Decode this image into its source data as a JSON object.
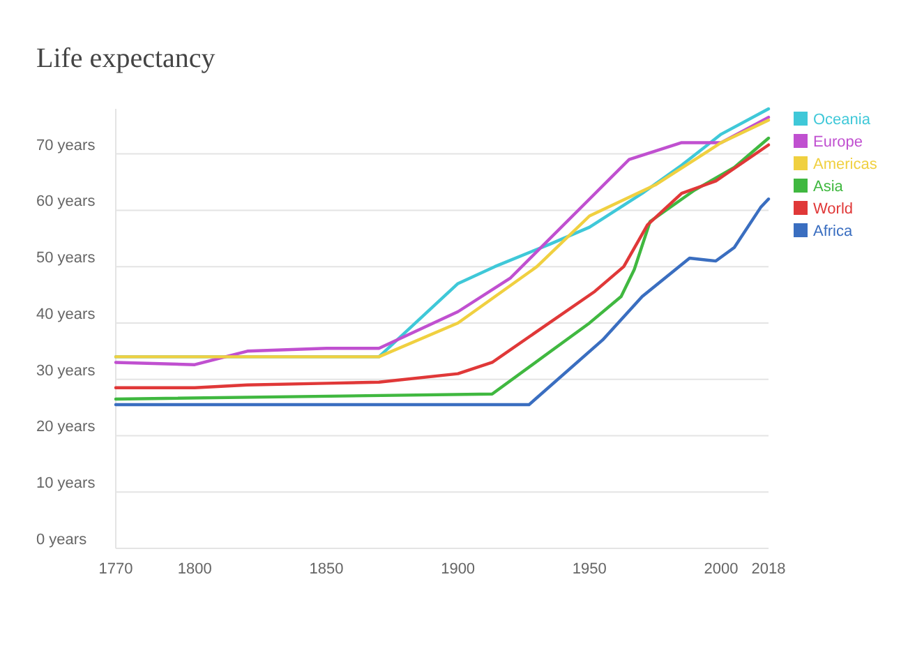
{
  "chart_data": {
    "type": "line",
    "title": "Life expectancy",
    "xlim": [
      1770,
      2018
    ],
    "xticks": [
      1770,
      1800,
      1850,
      1900,
      1950,
      2000,
      2018
    ],
    "ylim": [
      0,
      78
    ],
    "yticks": [
      {
        "value": 0,
        "label": "0 years"
      },
      {
        "value": 10,
        "label": "10 years"
      },
      {
        "value": 20,
        "label": "20 years"
      },
      {
        "value": 30,
        "label": "30 years"
      },
      {
        "value": 40,
        "label": "40 years"
      },
      {
        "value": 50,
        "label": "50 years"
      },
      {
        "value": 60,
        "label": "60 years"
      },
      {
        "value": 70,
        "label": "70 years"
      }
    ],
    "grid": "y",
    "legend": "right",
    "line_style": "solid",
    "series": [
      {
        "name": "Oceania",
        "color": "#3fc8d8",
        "x": [
          1770,
          1870,
          1900,
          1914,
          1935,
          1950,
          1970,
          1985,
          2000,
          2018
        ],
        "values": [
          34,
          34,
          47,
          50,
          54,
          57,
          63,
          68,
          73.5,
          78
        ]
      },
      {
        "name": "Europe",
        "color": "#c050d0",
        "x": [
          1770,
          1800,
          1820,
          1850,
          1870,
          1900,
          1920,
          1950,
          1965,
          1985,
          2000,
          2018
        ],
        "values": [
          33,
          32.6,
          35,
          35.5,
          35.5,
          42,
          48,
          62,
          69,
          72,
          72,
          76.5
        ]
      },
      {
        "name": "Americas",
        "color": "#f0d040",
        "x": [
          1770,
          1870,
          1900,
          1930,
          1950,
          1975,
          2000,
          2018
        ],
        "values": [
          34,
          34,
          40,
          50,
          59,
          64.5,
          72,
          76
        ]
      },
      {
        "name": "Asia",
        "color": "#40b840",
        "x": [
          1770,
          1913,
          1950,
          1962,
          1967,
          1973,
          1990,
          2005,
          2018
        ],
        "values": [
          26.5,
          27.4,
          40,
          44.7,
          49.5,
          58,
          63.6,
          67.6,
          72.8
        ]
      },
      {
        "name": "World",
        "color": "#e03838",
        "x": [
          1770,
          1800,
          1820,
          1850,
          1870,
          1900,
          1913,
          1952,
          1963,
          1972,
          1985,
          1998,
          2018
        ],
        "values": [
          28.5,
          28.5,
          29,
          29.3,
          29.5,
          31,
          33,
          45.6,
          50,
          57.4,
          63,
          65.2,
          71.6
        ]
      },
      {
        "name": "Africa",
        "color": "#3a6ec0",
        "x": [
          1770,
          1927,
          1955,
          1970,
          1988,
          1998,
          2005,
          2015,
          2018
        ],
        "values": [
          25.5,
          25.5,
          37,
          44.7,
          51.5,
          51,
          53.4,
          60.5,
          62
        ]
      }
    ]
  }
}
